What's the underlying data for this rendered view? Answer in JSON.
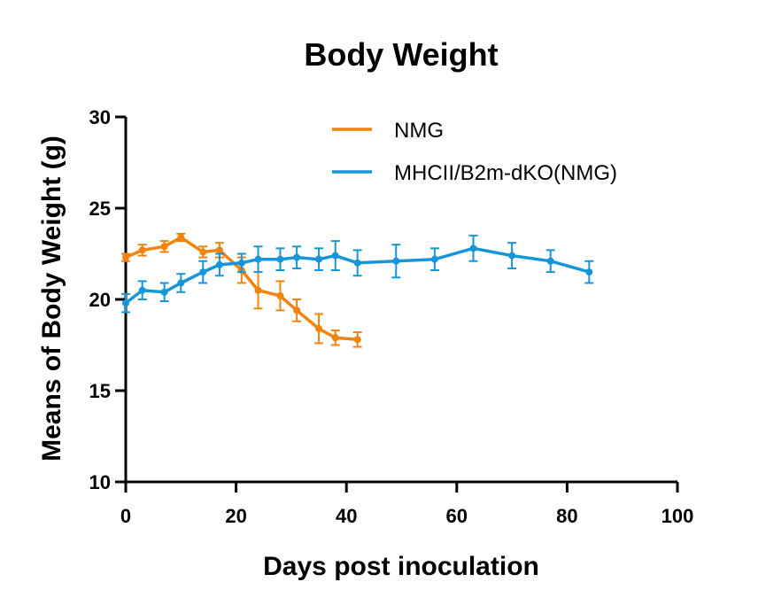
{
  "chart_data": {
    "type": "line",
    "title": "Body Weight",
    "xlabel": "Days post inoculation",
    "ylabel": "Means of Body Weight (g)",
    "xlim": [
      0,
      100
    ],
    "ylim": [
      10,
      30
    ],
    "xticks": [
      0,
      20,
      40,
      60,
      80,
      100
    ],
    "yticks": [
      10,
      15,
      20,
      25,
      30
    ],
    "grid": false,
    "legend_position": "top",
    "series": [
      {
        "name": "NMG",
        "color": "#f0840f",
        "x": [
          0,
          3,
          7,
          10,
          14,
          17,
          21,
          24,
          28,
          31,
          35,
          38,
          42
        ],
        "y": [
          22.3,
          22.7,
          22.9,
          23.4,
          22.6,
          22.7,
          21.6,
          20.5,
          20.2,
          19.4,
          18.4,
          17.9,
          17.8
        ],
        "err": [
          0.2,
          0.3,
          0.3,
          0.2,
          0.3,
          0.4,
          0.7,
          1.0,
          0.8,
          0.6,
          0.8,
          0.4,
          0.4
        ]
      },
      {
        "name": "MHCII/B2m-dKO(NMG)",
        "color": "#1696d6",
        "x": [
          0,
          3,
          7,
          10,
          14,
          17,
          21,
          24,
          28,
          31,
          35,
          38,
          42,
          49,
          56,
          63,
          70,
          77,
          84
        ],
        "y": [
          19.8,
          20.5,
          20.4,
          20.9,
          21.5,
          21.9,
          22.0,
          22.2,
          22.2,
          22.3,
          22.2,
          22.4,
          22.0,
          22.1,
          22.2,
          22.8,
          22.4,
          22.1,
          21.5
        ],
        "err": [
          0.5,
          0.5,
          0.5,
          0.5,
          0.6,
          0.6,
          0.5,
          0.7,
          0.6,
          0.6,
          0.6,
          0.8,
          0.7,
          0.9,
          0.6,
          0.7,
          0.7,
          0.6,
          0.6
        ]
      }
    ]
  }
}
